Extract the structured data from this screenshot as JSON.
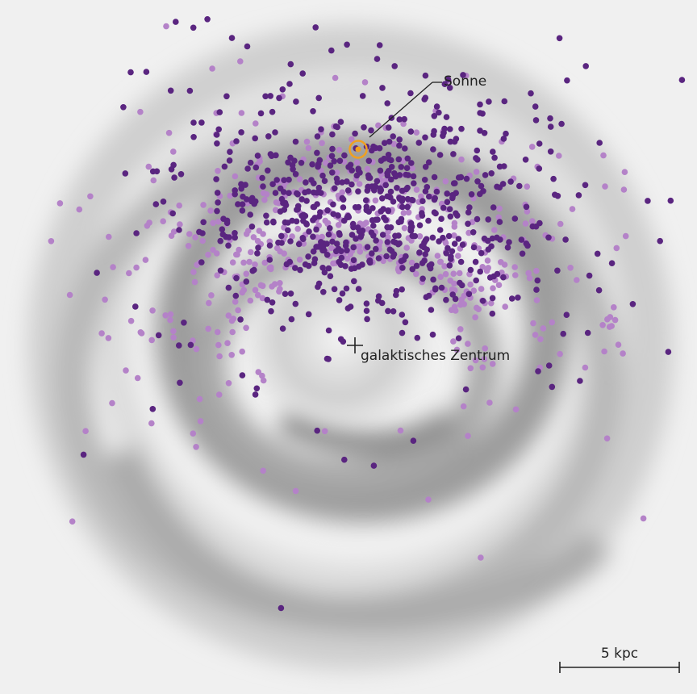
{
  "labels": {
    "sun": "Sonne",
    "center": "galaktisches Zentrum",
    "scale": "5 kpc"
  }
}
